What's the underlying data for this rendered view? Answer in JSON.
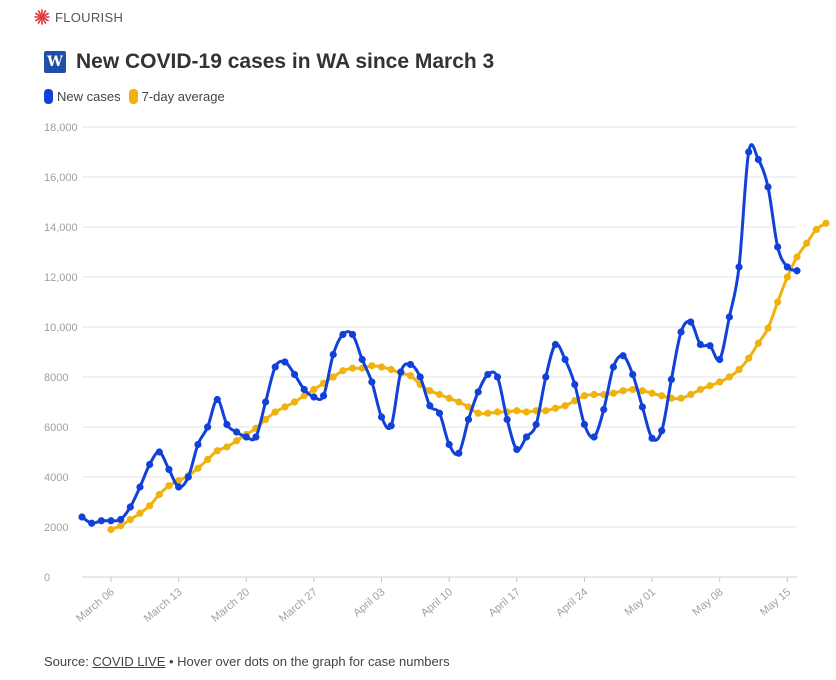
{
  "brand": {
    "name": "FLOURISH",
    "icon": "flourish-star-icon",
    "color": "#e0353b"
  },
  "header": {
    "logo_text": "W",
    "logo_color": "#1f4fa8",
    "title": "New COVID-19 cases in WA since March 3"
  },
  "footer": {
    "source_prefix": "Source: ",
    "source_link": "COVID LIVE",
    "note": " • Hover over dots on the graph for case numbers"
  },
  "chart_data": {
    "type": "line",
    "title": "New COVID-19 cases in WA since March 3",
    "xlabel": "",
    "ylabel": "",
    "ylim": [
      0,
      18000
    ],
    "yticks": [
      0,
      2000,
      4000,
      6000,
      8000,
      10000,
      12000,
      14000,
      16000,
      18000
    ],
    "ytick_labels": [
      "0",
      "2000",
      "4000",
      "6000",
      "8000",
      "10,000",
      "12,000",
      "14,000",
      "16,000",
      "18,000"
    ],
    "xtick_labels": [
      "March 06",
      "March 13",
      "March 20",
      "March 27",
      "April 03",
      "April 10",
      "April 17",
      "April 24",
      "May 01",
      "May 08",
      "May 15"
    ],
    "xtick_index": [
      3,
      10,
      17,
      24,
      31,
      38,
      45,
      52,
      59,
      66,
      73
    ],
    "grid": true,
    "legend_position": "top-left",
    "series": [
      {
        "name": "New cases",
        "color": "#1141d8",
        "start_index": 0,
        "values": [
          2400,
          2150,
          2250,
          2250,
          2300,
          2800,
          3600,
          4500,
          5000,
          4300,
          3600,
          4000,
          5300,
          6000,
          7100,
          6100,
          5800,
          5600,
          5600,
          7000,
          8400,
          8600,
          8100,
          7500,
          7200,
          7250,
          8900,
          9700,
          9700,
          8700,
          7800,
          6400,
          6050,
          8200,
          8500,
          8000,
          6850,
          6550,
          5300,
          4950,
          6300,
          7400,
          8100,
          8000,
          6300,
          5100,
          5600,
          6100,
          8000,
          9300,
          8700,
          7700,
          6100,
          5600,
          6700,
          8400,
          8850,
          8100,
          6800,
          5550,
          5850,
          7900,
          9800,
          10200,
          9300,
          9250,
          8700,
          10400,
          12400,
          17000,
          16700,
          15600,
          13200,
          12400,
          12250
        ]
      },
      {
        "name": "7-day average",
        "color": "#f0b20f",
        "start_index": 3,
        "values": [
          1900,
          2050,
          2300,
          2550,
          2850,
          3300,
          3650,
          3850,
          4050,
          4350,
          4700,
          5050,
          5200,
          5450,
          5700,
          5950,
          6300,
          6600,
          6800,
          7000,
          7250,
          7500,
          7750,
          8000,
          8250,
          8350,
          8350,
          8450,
          8400,
          8300,
          8150,
          8050,
          7700,
          7450,
          7300,
          7150,
          7000,
          6800,
          6550,
          6550,
          6600,
          6600,
          6650,
          6600,
          6650,
          6650,
          6750,
          6850,
          7050,
          7250,
          7300,
          7300,
          7350,
          7450,
          7500,
          7450,
          7350,
          7250,
          7150,
          7150,
          7300,
          7500,
          7650,
          7800,
          8000,
          8300,
          8750,
          9350,
          9950,
          11000,
          12000,
          12800,
          13350,
          13900,
          14150
        ]
      }
    ]
  }
}
